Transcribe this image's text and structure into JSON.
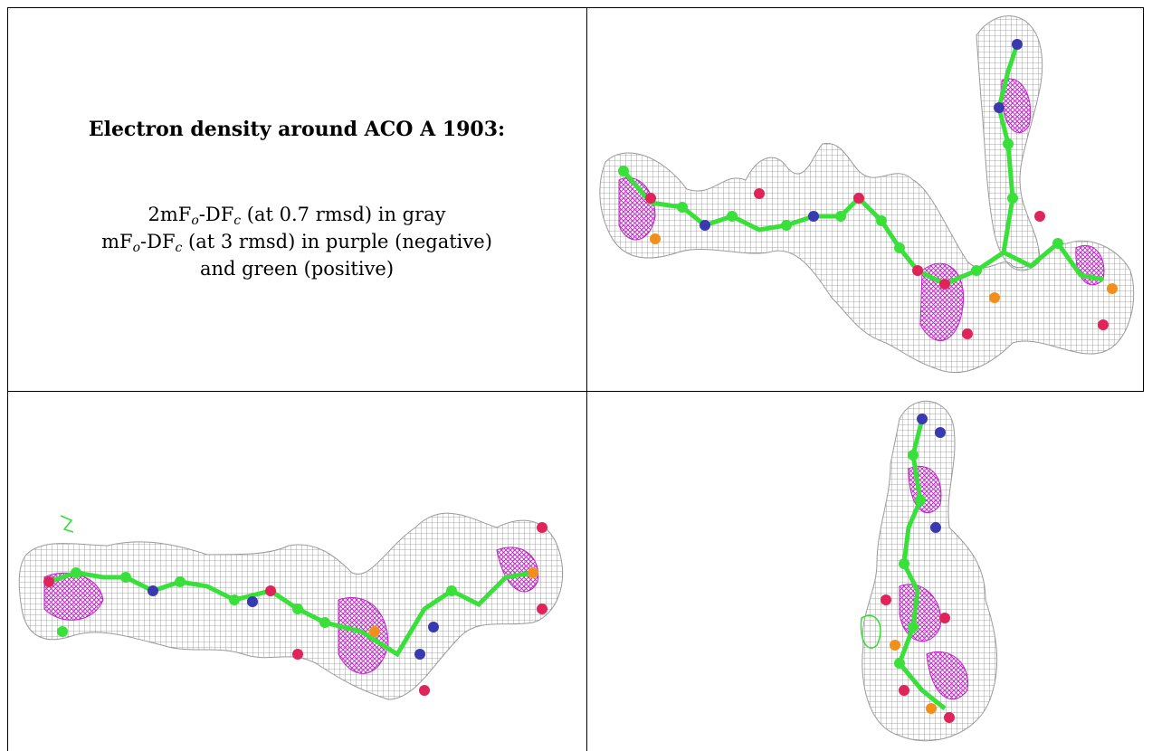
{
  "caption": {
    "title": "Electron density around ACO A 1903:",
    "line1": {
      "pre": "2mF",
      "sub1": "o",
      "mid": "-DF",
      "sub2": "c",
      "post": " (at 0.7 rmsd) in gray"
    },
    "line2": {
      "pre": "mF",
      "sub1": "o",
      "mid": "-DF",
      "sub2": "c",
      "post": " (at 3 rmsd) in purple (negative)"
    },
    "line3": "and green (positive)"
  },
  "colors": {
    "mesh_gray": "#8c8c8c",
    "carbon_green": "#39e03a",
    "nitrogen_blue": "#3a3ab0",
    "oxygen_red": "#e0245a",
    "phosphorus_orange": "#f0901a",
    "negative_purple": "#c020c8",
    "positive_green": "#30e030"
  },
  "panels": [
    {
      "name": "view-1",
      "icon": "density-map-view-horizontal"
    },
    {
      "name": "view-2",
      "icon": "density-map-view-side"
    },
    {
      "name": "view-3",
      "icon": "density-map-view-end"
    }
  ]
}
